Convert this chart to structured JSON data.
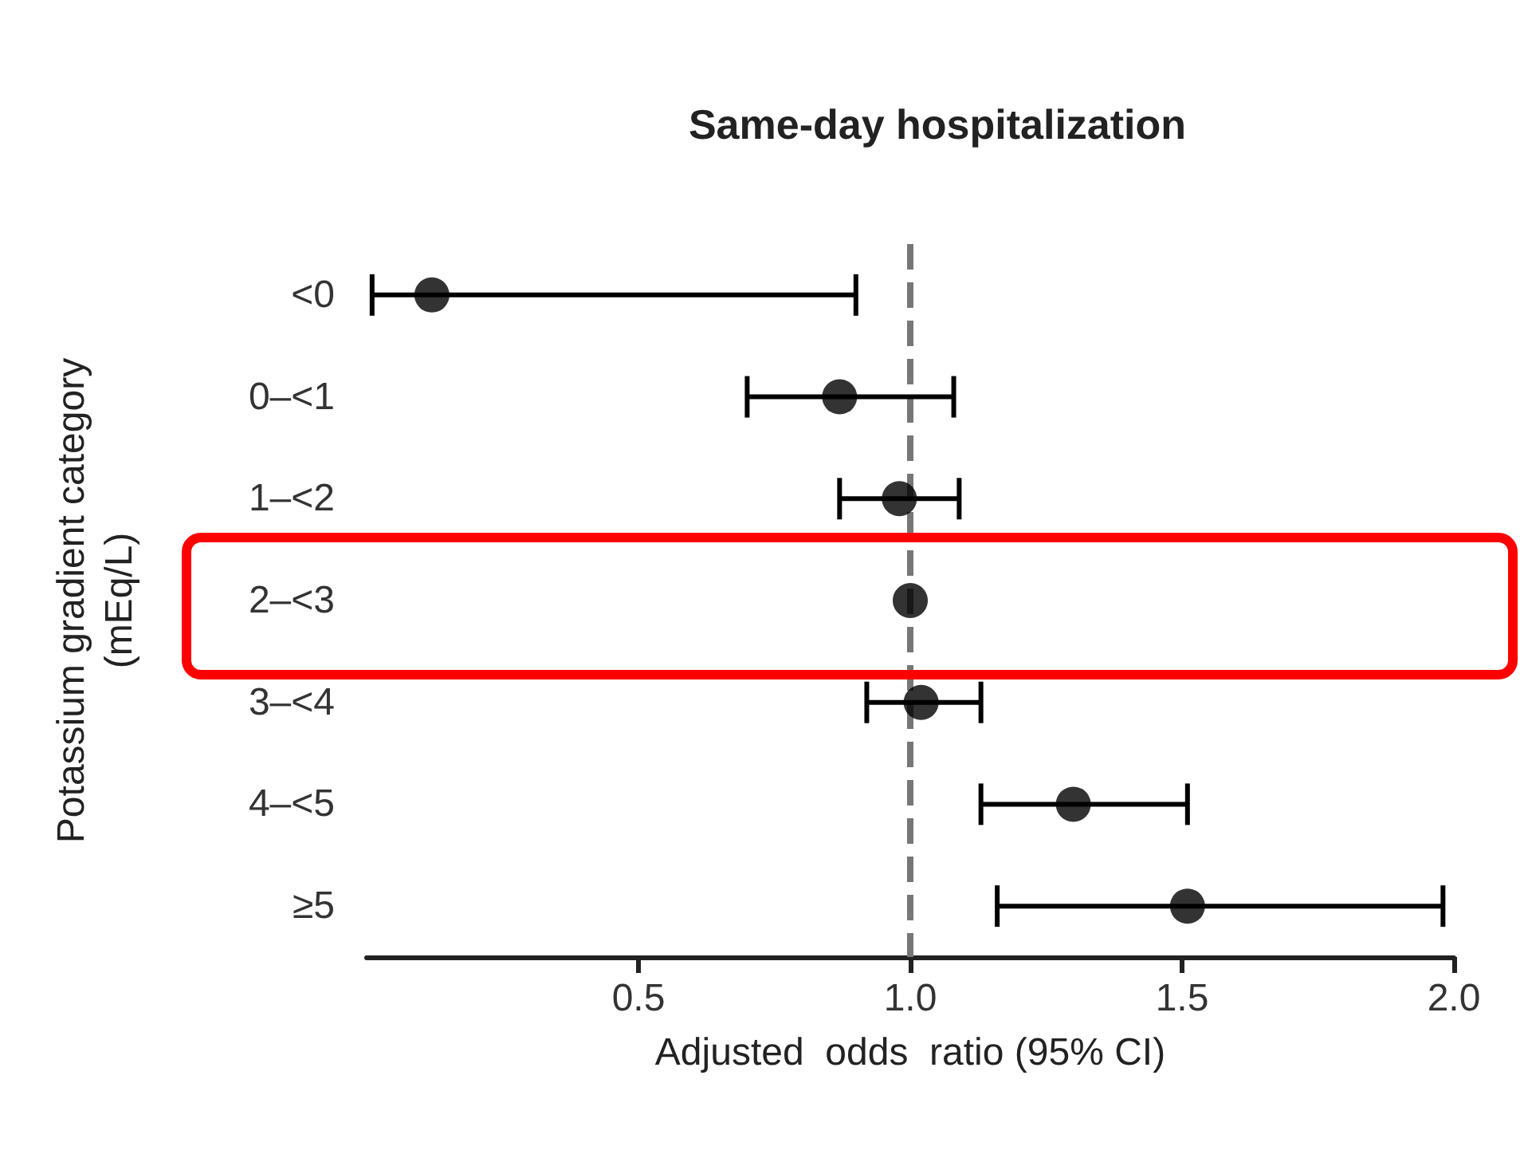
{
  "chart_data": {
    "type": "scatter",
    "orientation": "horizontal",
    "title": "Same-day hospitalization",
    "xlabel": "Adjusted  odds  ratio (95% CI)",
    "ylabel": "Potassium gradient category\n(mEq/L)",
    "categories": [
      "<0",
      "0–<1",
      "1–<2",
      "2–<3",
      "3–<4",
      "4–<5",
      "≥5"
    ],
    "values": [
      0.12,
      0.87,
      0.98,
      1.0,
      1.02,
      1.3,
      1.51
    ],
    "errors": [
      [
        0.01,
        0.9
      ],
      [
        0.7,
        1.08
      ],
      [
        0.87,
        1.09
      ],
      null,
      [
        0.92,
        1.13
      ],
      [
        1.13,
        1.51
      ],
      [
        1.16,
        1.98
      ]
    ],
    "color": "#000000",
    "marker": "circle",
    "xlim": [
      0,
      2
    ],
    "xticks": [
      0.5,
      {
        "value": 1,
        "label": "1.0"
      },
      1.5,
      {
        "value": 2,
        "label": "2.0"
      }
    ],
    "ref_lines": [
      {
        "axis": "x",
        "value": 1,
        "color": "#777777",
        "line_style": "dashed"
      }
    ],
    "grid": false
  }
}
